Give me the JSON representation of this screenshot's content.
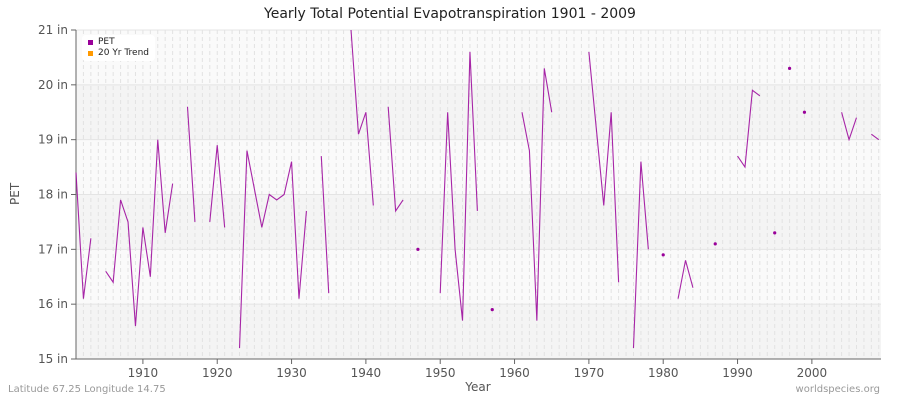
{
  "title": "Yearly Total Potential Evapotranspiration 1901 - 2009",
  "footer": {
    "left": "Latitude 67.25 Longitude 14.75",
    "right": "worldspecies.org"
  },
  "legend": [
    {
      "label": "PET",
      "color": "#990099"
    },
    {
      "label": "20 Yr Trend",
      "color": "#ff9900"
    }
  ],
  "chart_data": {
    "type": "line",
    "title": "Yearly Total Potential Evapotranspiration 1901 - 2009",
    "xlabel": "Year",
    "ylabel": "PET",
    "xlim": [
      1901,
      2009
    ],
    "ylim": [
      15,
      21
    ],
    "x_ticks": [
      1910,
      1920,
      1930,
      1940,
      1950,
      1960,
      1970,
      1980,
      1990,
      2000
    ],
    "y_ticks": [
      "15 in",
      "16 in",
      "17 in",
      "18 in",
      "19 in",
      "20 in",
      "21 in"
    ],
    "grid": true,
    "legend_position": "top-left",
    "series": [
      {
        "name": "PET",
        "color": "#990099",
        "x": [
          1901,
          1902,
          1903,
          1904,
          1905,
          1906,
          1907,
          1908,
          1909,
          1910,
          1911,
          1912,
          1913,
          1914,
          1915,
          1916,
          1917,
          1918,
          1919,
          1920,
          1921,
          1922,
          1923,
          1924,
          1925,
          1926,
          1927,
          1928,
          1929,
          1930,
          1931,
          1932,
          1933,
          1934,
          1935,
          1936,
          1937,
          1938,
          1939,
          1940,
          1941,
          1942,
          1943,
          1944,
          1945,
          1946,
          1947,
          1948,
          1949,
          1950,
          1951,
          1952,
          1953,
          1954,
          1955,
          1956,
          1957,
          1958,
          1959,
          1960,
          1961,
          1962,
          1963,
          1964,
          1965,
          1966,
          1967,
          1968,
          1969,
          1970,
          1971,
          1972,
          1973,
          1974,
          1975,
          1976,
          1977,
          1978,
          1979,
          1980,
          1981,
          1982,
          1983,
          1984,
          1985,
          1986,
          1987,
          1988,
          1989,
          1990,
          1991,
          1992,
          1993,
          1994,
          1995,
          1996,
          1997,
          1998,
          1999,
          2000,
          2001,
          2002,
          2003,
          2004,
          2005,
          2006,
          2007,
          2008,
          2009
        ],
        "values": [
          18.4,
          16.1,
          17.2,
          null,
          16.6,
          16.4,
          17.9,
          17.5,
          15.6,
          17.4,
          16.5,
          19.0,
          17.3,
          18.2,
          null,
          19.6,
          17.5,
          null,
          17.5,
          18.9,
          17.4,
          null,
          15.2,
          18.8,
          18.1,
          17.4,
          18.0,
          17.9,
          18.0,
          18.6,
          16.1,
          17.7,
          null,
          18.7,
          16.2,
          null,
          null,
          21.0,
          19.1,
          19.5,
          17.8,
          null,
          19.6,
          17.7,
          17.9,
          null,
          17.0,
          null,
          null,
          16.2,
          19.5,
          17.0,
          15.7,
          20.6,
          17.7,
          null,
          15.9,
          null,
          null,
          null,
          19.5,
          18.8,
          15.7,
          20.3,
          19.5,
          null,
          null,
          null,
          null,
          20.6,
          19.2,
          17.8,
          19.5,
          16.4,
          null,
          15.2,
          18.6,
          17.0,
          null,
          16.9,
          null,
          16.1,
          16.8,
          16.3,
          null,
          null,
          17.1,
          null,
          null,
          18.7,
          18.5,
          19.9,
          19.8,
          null,
          17.3,
          null,
          20.3,
          null,
          19.5,
          null,
          null,
          null,
          null,
          19.5,
          19.0,
          19.4,
          null,
          19.1,
          19.0
        ]
      },
      {
        "name": "20 Yr Trend",
        "color": "#ff9900",
        "x": [],
        "values": []
      }
    ]
  }
}
